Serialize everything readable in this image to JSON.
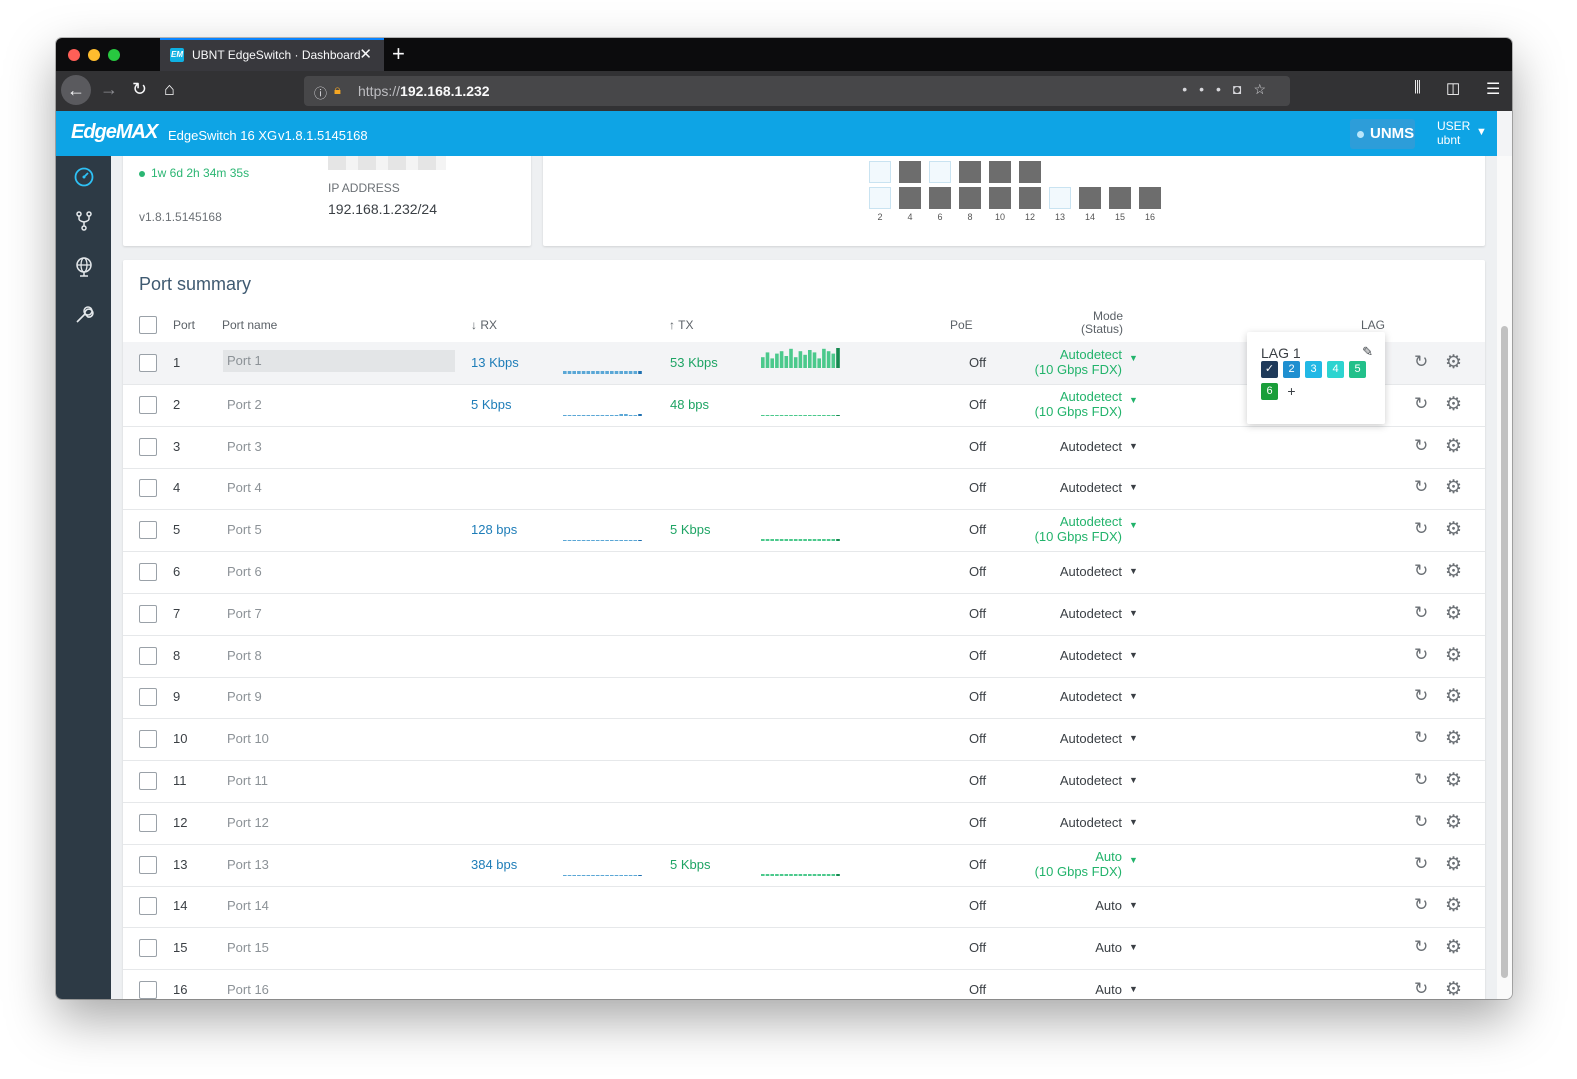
{
  "browser": {
    "tab_title": "UBNT EdgeSwitch · Dashboard",
    "favicon_text": "EM",
    "url_prefix": "https://",
    "url_host": "192.168.1.232",
    "icons": [
      "back-icon",
      "forward-icon",
      "reload-icon",
      "home-icon",
      "info-icon",
      "lock-warning-icon",
      "more-icon",
      "pocket-icon",
      "star-icon",
      "library-icon",
      "sidebar-icon",
      "menu-icon"
    ]
  },
  "header": {
    "logo": "EdgeMAX",
    "device_name": "EdgeSwitch 16 XG",
    "version": "v1.8.1.5145168",
    "unms_label": "UNMS",
    "user_role": "USER",
    "user_name": "ubnt",
    "accent_color": "#0ea4e5"
  },
  "sidebar": {
    "items": [
      "dashboard-icon",
      "network-icon",
      "globe-icon",
      "tools-icon"
    ]
  },
  "device_card": {
    "uptime": "1w 6d 2h 34m 35s",
    "ip_label": "IP ADDRESS",
    "ip_value": "192.168.1.232/24",
    "firmware": "v1.8.1.5145168"
  },
  "port_panel": {
    "bottom_labels": [
      "2",
      "4",
      "6",
      "8",
      "10",
      "12",
      "13",
      "14",
      "15",
      "16"
    ]
  },
  "port_summary": {
    "title": "Port summary",
    "columns": {
      "port": "Port",
      "port_name": "Port name",
      "rx": "↓ RX",
      "tx": "↑ TX",
      "poe": "PoE",
      "mode_line1": "Mode",
      "mode_line2": "(Status)",
      "lag": "LAG"
    },
    "rows": [
      {
        "port": "1",
        "name": "Port 1",
        "rx": "13 Kbps",
        "tx": "53 Kbps",
        "poe": "Off",
        "mode": "Autodetect",
        "status": "(10 Gbps FDX)"
      },
      {
        "port": "2",
        "name": "Port 2",
        "rx": "5 Kbps",
        "tx": "48 bps",
        "poe": "Off",
        "mode": "Autodetect",
        "status": "(10 Gbps FDX)"
      },
      {
        "port": "3",
        "name": "Port 3",
        "rx": "",
        "tx": "",
        "poe": "Off",
        "mode": "Autodetect",
        "status": ""
      },
      {
        "port": "4",
        "name": "Port 4",
        "rx": "",
        "tx": "",
        "poe": "Off",
        "mode": "Autodetect",
        "status": ""
      },
      {
        "port": "5",
        "name": "Port 5",
        "rx": "128 bps",
        "tx": "5 Kbps",
        "poe": "Off",
        "mode": "Autodetect",
        "status": "(10 Gbps FDX)"
      },
      {
        "port": "6",
        "name": "Port 6",
        "rx": "",
        "tx": "",
        "poe": "Off",
        "mode": "Autodetect",
        "status": ""
      },
      {
        "port": "7",
        "name": "Port 7",
        "rx": "",
        "tx": "",
        "poe": "Off",
        "mode": "Autodetect",
        "status": ""
      },
      {
        "port": "8",
        "name": "Port 8",
        "rx": "",
        "tx": "",
        "poe": "Off",
        "mode": "Autodetect",
        "status": ""
      },
      {
        "port": "9",
        "name": "Port 9",
        "rx": "",
        "tx": "",
        "poe": "Off",
        "mode": "Autodetect",
        "status": ""
      },
      {
        "port": "10",
        "name": "Port 10",
        "rx": "",
        "tx": "",
        "poe": "Off",
        "mode": "Autodetect",
        "status": ""
      },
      {
        "port": "11",
        "name": "Port 11",
        "rx": "",
        "tx": "",
        "poe": "Off",
        "mode": "Autodetect",
        "status": ""
      },
      {
        "port": "12",
        "name": "Port 12",
        "rx": "",
        "tx": "",
        "poe": "Off",
        "mode": "Autodetect",
        "status": ""
      },
      {
        "port": "13",
        "name": "Port 13",
        "rx": "384 bps",
        "tx": "5 Kbps",
        "poe": "Off",
        "mode": "Auto",
        "status": "(10 Gbps FDX)"
      },
      {
        "port": "14",
        "name": "Port 14",
        "rx": "",
        "tx": "",
        "poe": "Off",
        "mode": "Auto",
        "status": ""
      },
      {
        "port": "15",
        "name": "Port 15",
        "rx": "",
        "tx": "",
        "poe": "Off",
        "mode": "Auto",
        "status": ""
      },
      {
        "port": "16",
        "name": "Port 16",
        "rx": "",
        "tx": "",
        "poe": "Off",
        "mode": "Auto",
        "status": ""
      }
    ]
  },
  "lag_popup": {
    "title": "LAG 1",
    "chips": [
      {
        "label": "✓",
        "color": "#1f3a5a"
      },
      {
        "label": "2",
        "color": "#1f8fd0"
      },
      {
        "label": "3",
        "color": "#22b8e5"
      },
      {
        "label": "4",
        "color": "#2dd4d0"
      },
      {
        "label": "5",
        "color": "#22c08a"
      },
      {
        "label": "6",
        "color": "#1a9e3a"
      }
    ],
    "add_label": "+"
  }
}
